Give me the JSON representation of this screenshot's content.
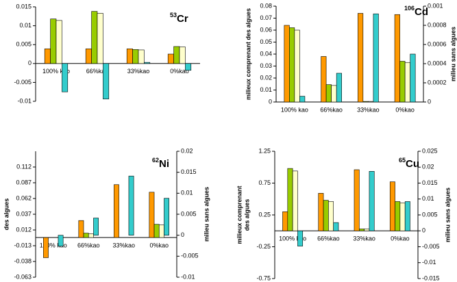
{
  "chart_data": [
    {
      "type": "bar",
      "title": {
        "mass": "53",
        "element": "Cr"
      },
      "categories": [
        "100% kao",
        "66%kao",
        "33%kao",
        "0%kao"
      ],
      "ylim": [
        -0.01,
        0.015
      ],
      "yticks": [
        -0.01,
        -0.005,
        0,
        0.005,
        0.01,
        0.015
      ],
      "series": [
        {
          "color": "#ff9900",
          "values": [
            0.0039,
            0.0039,
            0.0039,
            0.0025
          ]
        },
        {
          "color": "#99cc00",
          "values": [
            0.0118,
            0.0138,
            0.0037,
            0.0045
          ]
        },
        {
          "color": "#ffffcc",
          "values": [
            0.0114,
            0.0133,
            0.0036,
            0.0044
          ]
        },
        {
          "color": "#33cccc",
          "values": [
            -0.0075,
            -0.0094,
            0.0003,
            -0.0018
          ]
        }
      ]
    },
    {
      "type": "bar",
      "title": {
        "mass": "106",
        "element": "Cd"
      },
      "categories": [
        "100% kao",
        "66%kao",
        "33%kao",
        "0%kao"
      ],
      "ylabel": [
        "milieux comprenant des algues"
      ],
      "y2label": "milieu sans algues",
      "ylim": [
        0,
        0.08
      ],
      "yticks": [
        0,
        0.01,
        0.02,
        0.03,
        0.04,
        0.05,
        0.06,
        0.07,
        0.08
      ],
      "y2lim": [
        0,
        0.001
      ],
      "y2ticks": [
        0,
        0.0002,
        0.0004,
        0.0006,
        0.0008,
        0.001
      ],
      "series": [
        {
          "color": "#ff9900",
          "values": [
            0.064,
            0.038,
            0.074,
            0.073
          ]
        },
        {
          "color": "#99cc00",
          "values": [
            0.062,
            0.0145,
            0.0005,
            0.034
          ]
        },
        {
          "color": "#ffffcc",
          "values": [
            0.06,
            0.0138,
            0.0005,
            0.033
          ]
        },
        {
          "color": "#33cccc",
          "axis": "y2",
          "values": [
            6e-05,
            0.0003,
            0.00092,
            0.0005
          ]
        }
      ]
    },
    {
      "type": "bar",
      "title": {
        "mass": "62",
        "element": "Ni"
      },
      "categories": [
        "100% kao",
        "66%kao",
        "33%kao",
        "0%kao"
      ],
      "ylabel": [
        "des algues"
      ],
      "y2label": "milieu sans algues",
      "ylim": [
        -0.063,
        0.137
      ],
      "yticks": [
        -0.063,
        -0.038,
        -0.013,
        0.012,
        0.037,
        0.062,
        0.087,
        0.112
      ],
      "y2lim": [
        -0.01,
        0.02
      ],
      "y2ticks": [
        -0.01,
        -0.005,
        0,
        0.005,
        0.01,
        0.015,
        0.02
      ],
      "series": [
        {
          "color": "#ff9900",
          "values": [
            -0.032,
            0.027,
            0.084,
            0.072
          ]
        },
        {
          "color": "#99cc00",
          "values": [
            0,
            0.007,
            0,
            0.021
          ]
        },
        {
          "color": "#ffffcc",
          "values": [
            0,
            0.006,
            0,
            0.02
          ]
        },
        {
          "color": "#33cccc",
          "axis": "y2",
          "values": [
            -0.0026,
            0.0041,
            0.0141,
            0.0088
          ]
        }
      ]
    },
    {
      "type": "bar",
      "title": {
        "mass": "65",
        "element": "Cu"
      },
      "categories": [
        "100% kao",
        "66%kao",
        "33%kao",
        "0%kao"
      ],
      "ylabel": [
        "milieux comprenant",
        "des algues"
      ],
      "y2label": "milieu sans algues",
      "ylim": [
        -0.75,
        1.25
      ],
      "yticks": [
        -0.75,
        -0.25,
        0.25,
        0.75,
        1.25
      ],
      "y2lim": [
        -0.015,
        0.025
      ],
      "y2ticks": [
        -0.015,
        -0.01,
        -0.005,
        0,
        0.005,
        0.01,
        0.015,
        0.02,
        0.025
      ],
      "series": [
        {
          "color": "#ff9900",
          "values": [
            0.3,
            0.59,
            0.96,
            0.77
          ]
        },
        {
          "color": "#99cc00",
          "values": [
            0.98,
            0.48,
            0.03,
            0.46
          ]
        },
        {
          "color": "#ffffcc",
          "values": [
            0.94,
            0.46,
            0.03,
            0.44
          ]
        },
        {
          "color": "#33cccc",
          "axis": "y2",
          "values": [
            -0.0048,
            0.0026,
            0.0187,
            0.0092
          ]
        }
      ]
    }
  ]
}
